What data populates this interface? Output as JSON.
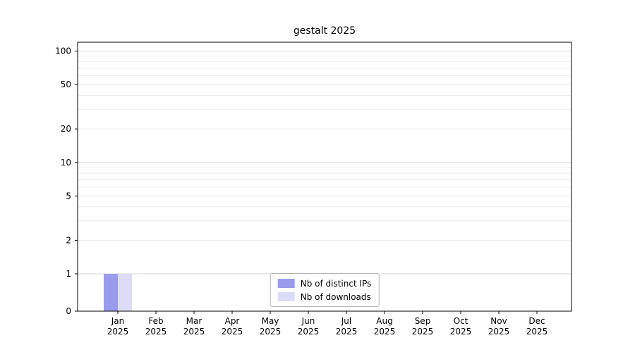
{
  "chart_data": {
    "type": "bar",
    "title": "gestalt 2025",
    "categories": [
      {
        "month": "Jan",
        "year": "2025"
      },
      {
        "month": "Feb",
        "year": "2025"
      },
      {
        "month": "Mar",
        "year": "2025"
      },
      {
        "month": "Apr",
        "year": "2025"
      },
      {
        "month": "May",
        "year": "2025"
      },
      {
        "month": "Jun",
        "year": "2025"
      },
      {
        "month": "Jul",
        "year": "2025"
      },
      {
        "month": "Aug",
        "year": "2025"
      },
      {
        "month": "Sep",
        "year": "2025"
      },
      {
        "month": "Oct",
        "year": "2025"
      },
      {
        "month": "Nov",
        "year": "2025"
      },
      {
        "month": "Dec",
        "year": "2025"
      }
    ],
    "series": [
      {
        "name": "Nb of distinct IPs",
        "color": "#9b9bee",
        "values": [
          1,
          0,
          0,
          0,
          0,
          0,
          0,
          0,
          0,
          0,
          0,
          0
        ]
      },
      {
        "name": "Nb of downloads",
        "color": "#dcdcf8",
        "values": [
          1,
          0,
          0,
          0,
          0,
          0,
          0,
          0,
          0,
          0,
          0,
          0
        ]
      }
    ],
    "yscale": "symlog",
    "ytick_labels": [
      0,
      1,
      2,
      5,
      10,
      20,
      50,
      100
    ],
    "ylim": [
      0,
      120
    ],
    "grid": true,
    "legend_position": "lower center",
    "colors": {
      "axis": "#000000",
      "grid_major": "#d8d8d8",
      "grid_minor": "#ececec",
      "background": "#ffffff"
    }
  }
}
